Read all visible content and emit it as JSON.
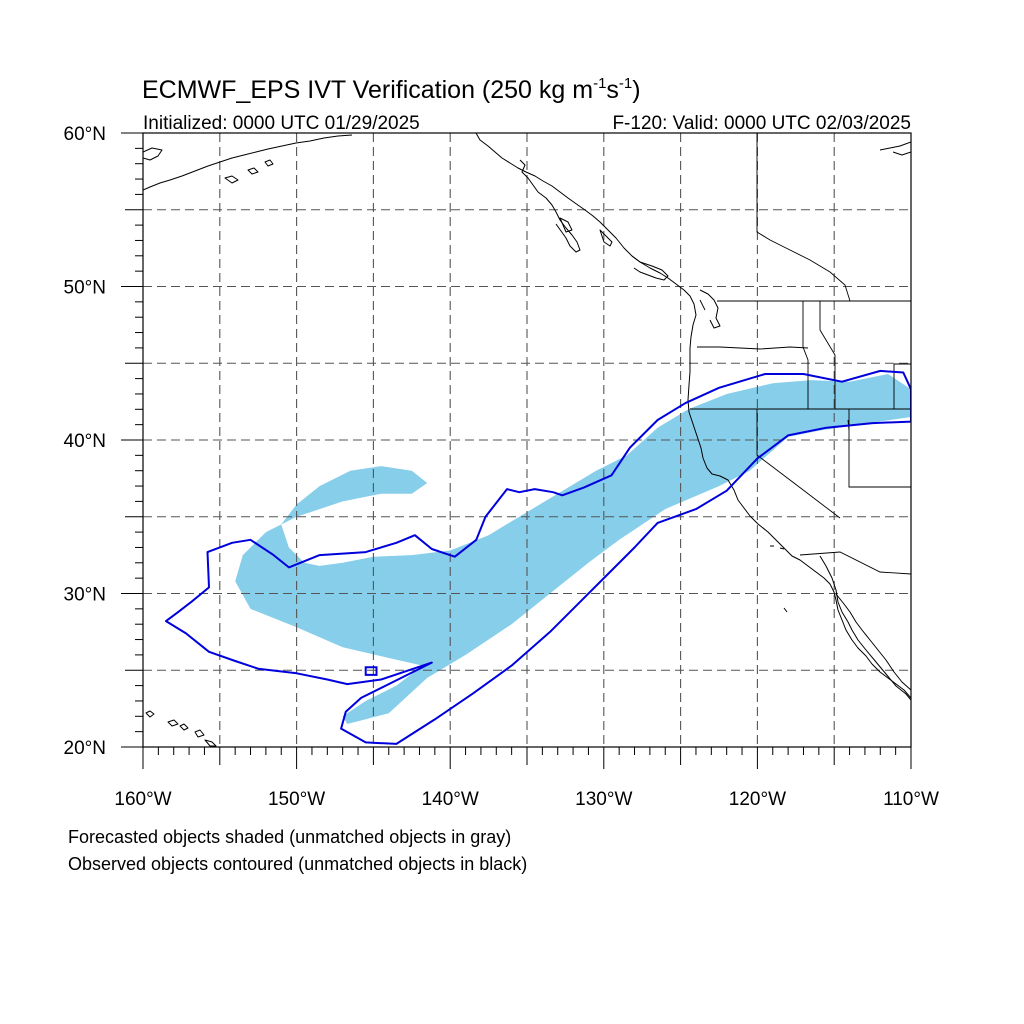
{
  "title_main": "ECMWF_EPS IVT Verification (250 kg m",
  "title_exp1": "-1",
  "title_mid": "s",
  "title_exp2": "-1",
  "title_end": ")",
  "subtitle_left": "Initialized: 0000 UTC 01/29/2025",
  "subtitle_right": "F-120: Valid: 0000 UTC 02/03/2025",
  "footnote_1": "Forecasted objects shaded (unmatched objects in gray)",
  "footnote_2": "Observed objects contoured (unmatched objects in black)",
  "lat_labels": [
    {
      "value": 60,
      "text": "60°N"
    },
    {
      "value": 50,
      "text": "50°N"
    },
    {
      "value": 40,
      "text": "40°N"
    },
    {
      "value": 30,
      "text": "30°N"
    },
    {
      "value": 20,
      "text": "20°N"
    }
  ],
  "lon_labels": [
    {
      "value": -160,
      "text": "160°W"
    },
    {
      "value": -150,
      "text": "150°W"
    },
    {
      "value": -140,
      "text": "140°W"
    },
    {
      "value": -130,
      "text": "130°W"
    },
    {
      "value": -120,
      "text": "120°W"
    },
    {
      "value": -110,
      "text": "110°W"
    }
  ],
  "lon_range": [
    -160,
    -110
  ],
  "lat_range": [
    20,
    60
  ],
  "colors": {
    "forecast_fill": "#87ceeb",
    "observed_contour": "#0000dd",
    "coast": "#000000",
    "grid": "#555555"
  },
  "forecast_object": [
    [
      -146.7,
      21.5
    ],
    [
      -144,
      22.2
    ],
    [
      -141.5,
      24.5
    ],
    [
      -139,
      26
    ],
    [
      -136,
      28
    ],
    [
      -133.5,
      30
    ],
    [
      -131,
      32
    ],
    [
      -129,
      33.5
    ],
    [
      -126,
      35.5
    ],
    [
      -122.5,
      37
    ],
    [
      -120.5,
      38
    ],
    [
      -118,
      40.2
    ],
    [
      -116,
      40.6
    ],
    [
      -113.5,
      41
    ],
    [
      -110,
      41.5
    ],
    [
      -110,
      43.3
    ],
    [
      -111.5,
      44.3
    ],
    [
      -114,
      43.8
    ],
    [
      -116.5,
      43.9
    ],
    [
      -119,
      43.7
    ],
    [
      -122,
      43
    ],
    [
      -124.5,
      42
    ],
    [
      -126.5,
      40.8
    ],
    [
      -128.5,
      39
    ],
    [
      -130.5,
      38
    ],
    [
      -133,
      36.5
    ],
    [
      -135,
      35.3
    ],
    [
      -137.5,
      33.8
    ],
    [
      -140,
      32.8
    ],
    [
      -142.5,
      32.5
    ],
    [
      -145,
      32.4
    ],
    [
      -147,
      32
    ],
    [
      -148.5,
      31.8
    ],
    [
      -149.5,
      32
    ],
    [
      -150.5,
      33
    ],
    [
      -151,
      34.5
    ],
    [
      -150,
      35.8
    ],
    [
      -148.5,
      37
    ],
    [
      -146.5,
      38
    ],
    [
      -144.5,
      38.3
    ],
    [
      -142.5,
      38
    ],
    [
      -141.5,
      37.2
    ],
    [
      -142.5,
      36.5
    ],
    [
      -144.5,
      36.5
    ],
    [
      -147,
      36
    ],
    [
      -150,
      35
    ],
    [
      -152,
      34
    ],
    [
      -153.5,
      32.5
    ],
    [
      -154,
      30.8
    ],
    [
      -153,
      29
    ],
    [
      -150,
      27.8
    ],
    [
      -147,
      26.5
    ],
    [
      -144,
      25.8
    ],
    [
      -141.8,
      25.3
    ],
    [
      -143.5,
      24
    ],
    [
      -145.5,
      23
    ],
    [
      -147,
      22
    ]
  ],
  "observed_object": [
    [
      -141.2,
      25.5
    ],
    [
      -144,
      24.1
    ],
    [
      -145.8,
      23.2
    ],
    [
      -146.8,
      22.3
    ],
    [
      -147.1,
      21.2
    ],
    [
      -145.5,
      20.3
    ],
    [
      -143.5,
      20.2
    ],
    [
      -141,
      21.8
    ],
    [
      -138.5,
      23.5
    ],
    [
      -136,
      25.3
    ],
    [
      -133.5,
      27.5
    ],
    [
      -131.5,
      29.5
    ],
    [
      -129.5,
      31.5
    ],
    [
      -128,
      33
    ],
    [
      -126.5,
      34.6
    ],
    [
      -124,
      35.5
    ],
    [
      -122,
      36.7
    ],
    [
      -120,
      38.8
    ],
    [
      -118,
      40.3
    ],
    [
      -115.5,
      40.8
    ],
    [
      -112.5,
      41.1
    ],
    [
      -110,
      41.2
    ],
    [
      -110,
      43.3
    ],
    [
      -110.5,
      44.4
    ],
    [
      -112,
      44.5
    ],
    [
      -114.5,
      43.8
    ],
    [
      -117,
      44.3
    ],
    [
      -119.5,
      44.3
    ],
    [
      -122.5,
      43.4
    ],
    [
      -124.7,
      42.4
    ],
    [
      -126.5,
      41.3
    ],
    [
      -128.3,
      39.5
    ],
    [
      -129.5,
      37.7
    ],
    [
      -131.3,
      36.9
    ],
    [
      -132.7,
      36.4
    ],
    [
      -133.3,
      36.6
    ],
    [
      -134.5,
      36.8
    ],
    [
      -135.5,
      36.6
    ],
    [
      -136.3,
      36.8
    ],
    [
      -137.7,
      35
    ],
    [
      -138.3,
      33.5
    ],
    [
      -139.7,
      32.4
    ],
    [
      -141.2,
      32.9
    ],
    [
      -142.3,
      33.8
    ],
    [
      -143.5,
      33.3
    ],
    [
      -145.5,
      32.7
    ],
    [
      -148.5,
      32.5
    ],
    [
      -150.5,
      31.7
    ],
    [
      -151.5,
      32.5
    ],
    [
      -153,
      33.5
    ],
    [
      -154.2,
      33.3
    ],
    [
      -155.8,
      32.7
    ],
    [
      -155.7,
      30.4
    ],
    [
      -156.8,
      29.5
    ],
    [
      -157.7,
      28.8
    ],
    [
      -158.5,
      28.2
    ],
    [
      -157.2,
      27.4
    ],
    [
      -155.7,
      26.2
    ],
    [
      -154,
      25.6
    ],
    [
      -152.5,
      25.1
    ],
    [
      -150,
      24.8
    ],
    [
      -148,
      24.4
    ],
    [
      -146.7,
      24.1
    ],
    [
      -144.5,
      24.4
    ]
  ],
  "observed_small": [
    [
      -145.5,
      25.2
    ],
    [
      -144.8,
      25.2
    ],
    [
      -144.8,
      24.7
    ],
    [
      -145.5,
      24.7
    ]
  ]
}
